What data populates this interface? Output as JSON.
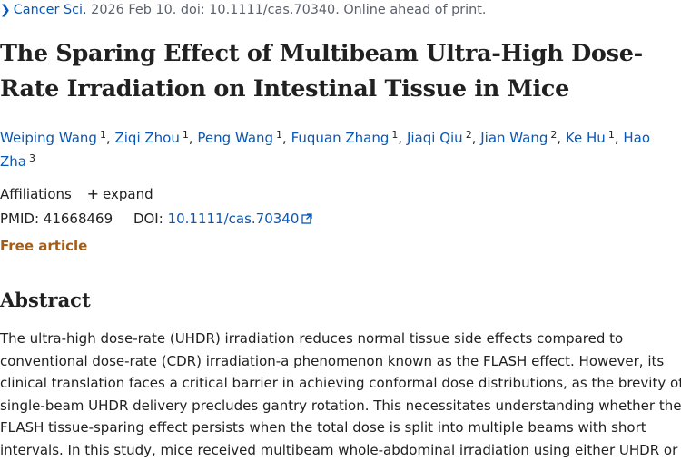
{
  "citation": {
    "journal": "Cancer Sci.",
    "rest": " 2026 Feb 10. doi: 10.1111/cas.70340. Online ahead of print."
  },
  "title": "The Sparing Effect of Multibeam Ultra-High Dose-Rate Irradiation on Intestinal Tissue in Mice",
  "authors": [
    {
      "name": "Weiping Wang",
      "aff": "1"
    },
    {
      "name": "Ziqi Zhou",
      "aff": "1"
    },
    {
      "name": "Peng Wang",
      "aff": "1"
    },
    {
      "name": "Fuquan Zhang",
      "aff": "1"
    },
    {
      "name": "Jiaqi Qiu",
      "aff": "2"
    },
    {
      "name": "Jian Wang",
      "aff": "2"
    },
    {
      "name": "Ke Hu",
      "aff": "1"
    },
    {
      "name": "Hao Zha",
      "aff": "3"
    }
  ],
  "affiliations": {
    "label": "Affiliations",
    "expand_label": "expand",
    "plus": "+"
  },
  "ids": {
    "pmid_label": "PMID:",
    "pmid": "41668469",
    "doi_label": "DOI:",
    "doi": "10.1111/cas.70340"
  },
  "free_article": "Free article",
  "abstract": {
    "heading": "Abstract",
    "lines": [
      "The ultra-high dose-rate (UHDR) irradiation reduces normal tissue side effects compared to",
      "conventional dose-rate (CDR) irradiation-a phenomenon known as the FLASH effect. However, its",
      "clinical translation faces a critical barrier in achieving conformal dose distributions, as the brevity of",
      "single-beam UHDR delivery precludes gantry rotation. This necessitates understanding whether the",
      "FLASH tissue-sparing effect persists when the total dose is split into multiple beams with short",
      "intervals. In this study, mice received multibeam whole-abdominal irradiation using either UHDR or"
    ]
  },
  "colors": {
    "link": "#0b57b5",
    "text": "#212121",
    "free": "#a55d16",
    "muted": "#5b616b"
  },
  "icons": {
    "chevron": "chevron-right-icon",
    "external": "external-link-icon"
  }
}
